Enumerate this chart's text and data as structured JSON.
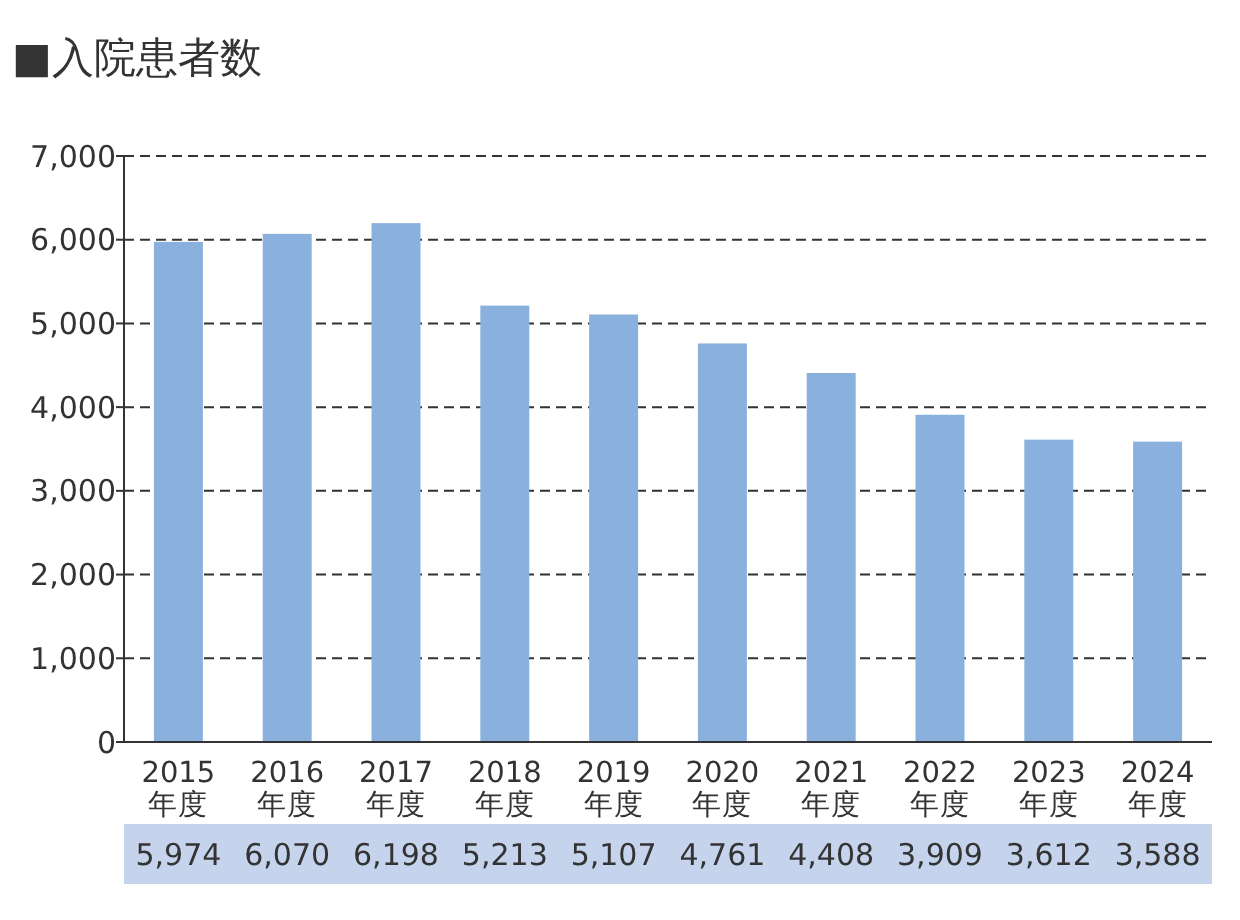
{
  "chart_data": {
    "type": "bar",
    "title": "■入院患者数",
    "categories": [
      "2015\n年度",
      "2016\n年度",
      "2017\n年度",
      "2018\n年度",
      "2019\n年度",
      "2020\n年度",
      "2021\n年度",
      "2022\n年度",
      "2023\n年度",
      "2024\n年度"
    ],
    "values": [
      5974,
      6070,
      6198,
      5213,
      5107,
      4761,
      4408,
      3909,
      3612,
      3588
    ],
    "color": "#8ab1de",
    "ylim": [
      0,
      7000
    ],
    "yticks": [
      {
        "value": 0,
        "label": "0"
      },
      {
        "value": 1000,
        "label": "1,000"
      },
      {
        "value": 2000,
        "label": "2,000"
      },
      {
        "value": 3000,
        "label": "3,000"
      },
      {
        "value": 4000,
        "label": "4,000"
      },
      {
        "value": 5000,
        "label": "5,000"
      },
      {
        "value": 6000,
        "label": "6,000"
      },
      {
        "value": 7000,
        "label": "7,000"
      }
    ],
    "value_labels": [
      "5,974",
      "6,070",
      "6,198",
      "5,213",
      "5,107",
      "4,761",
      "4,408",
      "3,909",
      "3,612",
      "3,588"
    ],
    "grid": "y"
  }
}
